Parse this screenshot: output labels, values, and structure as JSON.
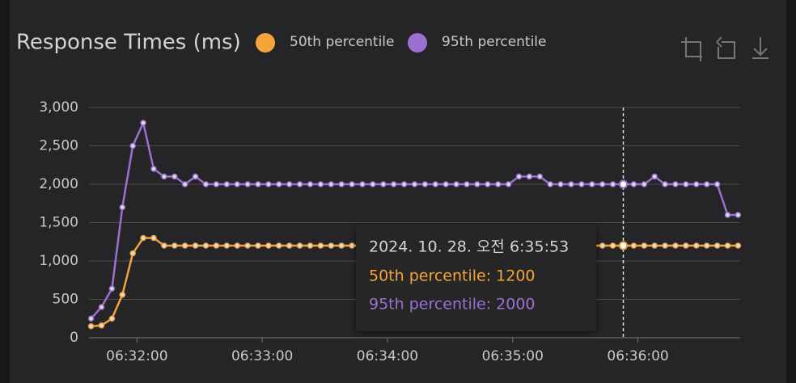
{
  "chart_data": {
    "type": "line",
    "title": "Response Times (ms)",
    "x": [
      "06:31:38",
      "06:31:43",
      "06:31:48",
      "06:31:53",
      "06:31:58",
      "06:32:03",
      "06:32:08",
      "06:32:13",
      "06:32:18",
      "06:32:23",
      "06:32:28",
      "06:32:33",
      "06:32:38",
      "06:32:43",
      "06:32:48",
      "06:32:53",
      "06:32:58",
      "06:33:03",
      "06:33:08",
      "06:33:13",
      "06:33:18",
      "06:33:23",
      "06:33:28",
      "06:33:33",
      "06:33:38",
      "06:33:43",
      "06:33:48",
      "06:33:53",
      "06:33:58",
      "06:34:03",
      "06:34:08",
      "06:34:13",
      "06:34:18",
      "06:34:23",
      "06:34:28",
      "06:34:33",
      "06:34:38",
      "06:34:43",
      "06:34:48",
      "06:34:53",
      "06:34:58",
      "06:35:03",
      "06:35:08",
      "06:35:13",
      "06:35:18",
      "06:35:23",
      "06:35:28",
      "06:35:33",
      "06:35:38",
      "06:35:43",
      "06:35:48",
      "06:35:53",
      "06:35:58",
      "06:36:03",
      "06:36:08",
      "06:36:13",
      "06:36:18",
      "06:36:23",
      "06:36:28",
      "06:36:33",
      "06:36:38",
      "06:36:43",
      "06:36:48"
    ],
    "series": [
      {
        "name": "50th percentile",
        "color": "#f4a43b",
        "values": [
          150,
          160,
          250,
          560,
          1100,
          1300,
          1300,
          1200,
          1200,
          1200,
          1200,
          1200,
          1200,
          1200,
          1200,
          1200,
          1200,
          1200,
          1200,
          1200,
          1200,
          1200,
          1200,
          1200,
          1200,
          1200,
          1200,
          1200,
          1200,
          1200,
          1200,
          1200,
          1200,
          1200,
          1200,
          1200,
          1200,
          1200,
          1200,
          1200,
          1200,
          1200,
          1200,
          1200,
          1200,
          1200,
          1200,
          1200,
          1200,
          1200,
          1200,
          1200,
          1200,
          1200,
          1200,
          1200,
          1200,
          1200,
          1200,
          1200,
          1200,
          1200,
          1200
        ]
      },
      {
        "name": "95th percentile",
        "color": "#9a70d2",
        "values": [
          250,
          400,
          640,
          1700,
          2500,
          2800,
          2200,
          2100,
          2100,
          2000,
          2100,
          2000,
          2000,
          2000,
          2000,
          2000,
          2000,
          2000,
          2000,
          2000,
          2000,
          2000,
          2000,
          2000,
          2000,
          2000,
          2000,
          2000,
          2000,
          2000,
          2000,
          2000,
          2000,
          2000,
          2000,
          2000,
          2000,
          2000,
          2000,
          2000,
          2000,
          2100,
          2100,
          2100,
          2000,
          2000,
          2000,
          2000,
          2000,
          2000,
          2000,
          2000,
          2000,
          2000,
          2100,
          2000,
          2000,
          2000,
          2000,
          2000,
          2000,
          1600,
          1600
        ]
      }
    ],
    "xlim": [
      "06:31:37",
      "06:36:49"
    ],
    "xticks": [
      "06:32:00",
      "06:33:00",
      "06:34:00",
      "06:35:00",
      "06:36:00"
    ],
    "ylim": [
      0,
      3000
    ],
    "yticks": [
      0,
      500,
      {
        "value": 1000,
        "label": "1,000"
      },
      {
        "value": 1500,
        "label": "1,500"
      },
      {
        "value": 2000,
        "label": "2,000"
      },
      {
        "value": 2500,
        "label": "2,500"
      },
      {
        "value": 3000,
        "label": "3,000"
      }
    ],
    "grid": true,
    "hover_index": 51,
    "tooltip": {
      "title": "2024. 10. 28. 오전 6:35:53",
      "lines": [
        "50th percentile: 1200",
        "95th percentile: 2000"
      ]
    }
  }
}
